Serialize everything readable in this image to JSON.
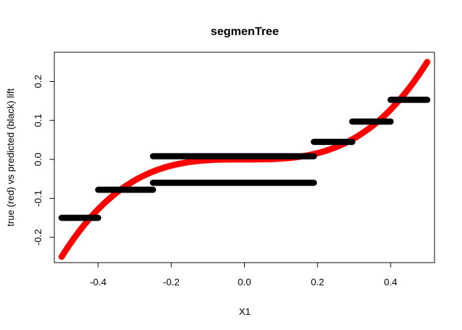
{
  "chart_data": {
    "type": "line",
    "title": "segmenTree",
    "xlabel": "X1",
    "ylabel": "true (red) vs predicted (black) lift",
    "xlim": [
      -0.52,
      0.52
    ],
    "ylim": [
      -0.265,
      0.275
    ],
    "x_ticks": [
      -0.4,
      -0.2,
      0.0,
      0.2,
      0.4
    ],
    "x_tick_labels": [
      "-0.4",
      "-0.2",
      "0.0",
      "0.2",
      "0.4"
    ],
    "y_ticks": [
      -0.2,
      -0.1,
      0.0,
      0.1,
      0.2
    ],
    "y_tick_labels": [
      "-0.2",
      "-0.1",
      "0.0",
      "0.1",
      "0.2"
    ],
    "grid": false,
    "legend": "none",
    "true_curve": {
      "color": "#ff0000",
      "description_formula": "2*x^3",
      "x": [
        -0.5,
        -0.45,
        -0.4,
        -0.35,
        -0.3,
        -0.25,
        -0.2,
        -0.15,
        -0.1,
        -0.05,
        0.0,
        0.05,
        0.1,
        0.15,
        0.2,
        0.25,
        0.3,
        0.35,
        0.4,
        0.45,
        0.5
      ],
      "y": [
        -0.25,
        -0.182,
        -0.128,
        -0.086,
        -0.054,
        -0.031,
        -0.016,
        -0.007,
        -0.002,
        0.0,
        0.0,
        0.0,
        0.002,
        0.007,
        0.016,
        0.031,
        0.054,
        0.086,
        0.128,
        0.182,
        0.25
      ]
    },
    "predicted_segments": {
      "color": "#000000",
      "segments": [
        {
          "x0": -0.5,
          "x1": -0.4,
          "y": -0.15
        },
        {
          "x0": -0.4,
          "x1": -0.25,
          "y": -0.078
        },
        {
          "x0": -0.25,
          "x1": 0.19,
          "y": 0.008
        },
        {
          "x0": -0.25,
          "x1": 0.19,
          "y": -0.06
        },
        {
          "x0": 0.19,
          "x1": 0.295,
          "y": 0.045
        },
        {
          "x0": 0.295,
          "x1": 0.4,
          "y": 0.097
        },
        {
          "x0": 0.4,
          "x1": 0.5,
          "y": 0.153
        }
      ]
    }
  }
}
